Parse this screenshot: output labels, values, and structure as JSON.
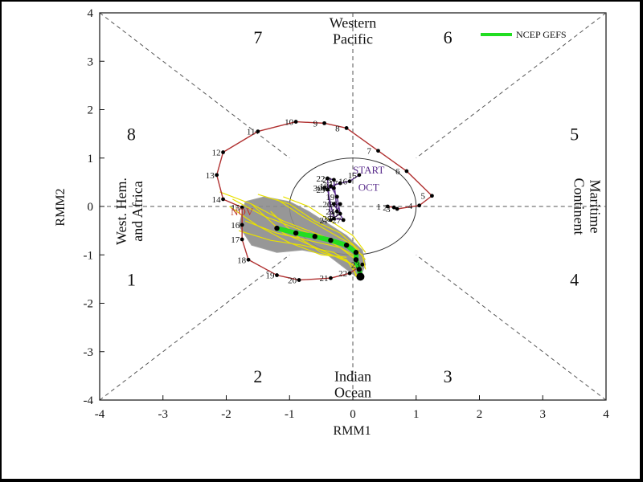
{
  "chart_data": {
    "type": "scatter",
    "xlabel": "RMM1",
    "ylabel": "RMM2",
    "xlim": [
      -4,
      4
    ],
    "ylim": [
      -4,
      4
    ],
    "x_ticks": [
      "-4",
      "-3",
      "-2",
      "-1",
      "0",
      "1",
      "2",
      "3",
      "4"
    ],
    "y_ticks": [
      "-4",
      "-3",
      "-2",
      "-1",
      "0",
      "1",
      "2",
      "3",
      "4"
    ],
    "legend": {
      "label": "NCEP GEFS",
      "color": "#22dd22",
      "position": "top-right"
    },
    "regions": {
      "top": [
        "Western",
        "Pacific"
      ],
      "bottom": [
        "Indian",
        "Ocean"
      ],
      "left": [
        "West. Hem.",
        "and Africa"
      ],
      "right": [
        "Maritime",
        "Continent"
      ]
    },
    "phases": [
      {
        "label": "1",
        "x": -3.5,
        "y": -1.5
      },
      {
        "label": "2",
        "x": -1.5,
        "y": -3.5
      },
      {
        "label": "3",
        "x": 1.5,
        "y": -3.5
      },
      {
        "label": "4",
        "x": 3.5,
        "y": -1.5
      },
      {
        "label": "5",
        "x": 3.5,
        "y": 1.5
      },
      {
        "label": "6",
        "x": 1.5,
        "y": 3.5
      },
      {
        "label": "7",
        "x": -1.5,
        "y": 3.5
      },
      {
        "label": "8",
        "x": -3.5,
        "y": 1.5
      }
    ],
    "month_labels": [
      {
        "text": "START",
        "x": 0.25,
        "y": 0.68,
        "color": "#5a2d8c"
      },
      {
        "text": "OCT",
        "x": 0.25,
        "y": 0.32,
        "color": "#5a2d8c"
      },
      {
        "text": "NOV",
        "x": -1.75,
        "y": -0.18,
        "color": "#c0392b"
      }
    ],
    "series": [
      {
        "name": "OCT",
        "color": "#5a2d8c",
        "points": [
          {
            "day": "15",
            "x": 0.1,
            "y": 0.65
          },
          {
            "day": "16",
            "x": -0.05,
            "y": 0.52
          },
          {
            "day": "17",
            "x": -0.2,
            "y": 0.48
          },
          {
            "day": "18",
            "x": -0.35,
            "y": 0.42
          },
          {
            "day": "19",
            "x": -0.25,
            "y": 0.2
          },
          {
            "day": "20",
            "x": -0.2,
            "y": -0.15
          },
          {
            "day": "21",
            "x": -0.35,
            "y": -0.28
          },
          {
            "day": "22",
            "x": -0.4,
            "y": 0.58
          },
          {
            "day": "23",
            "x": -0.3,
            "y": 0.55
          },
          {
            "day": "24",
            "x": -0.25,
            "y": -0.1
          },
          {
            "day": "25",
            "x": -0.2,
            "y": 0.05
          },
          {
            "day": "26",
            "x": -0.3,
            "y": 0.05
          },
          {
            "day": "27",
            "x": -0.15,
            "y": -0.28
          },
          {
            "day": "28",
            "x": -0.3,
            "y": -0.25
          },
          {
            "day": "29",
            "x": -0.4,
            "y": 0.35
          },
          {
            "day": "30",
            "x": -0.45,
            "y": 0.38
          },
          {
            "day": "31",
            "x": -0.3,
            "y": 0.38
          }
        ]
      },
      {
        "name": "NOV",
        "color": "#b03030",
        "points": [
          {
            "day": "1",
            "x": 0.55,
            "y": 0.0
          },
          {
            "day": "2",
            "x": 0.65,
            "y": -0.02
          },
          {
            "day": "3",
            "x": 0.7,
            "y": -0.05
          },
          {
            "day": "4",
            "x": 1.05,
            "y": 0.02
          },
          {
            "day": "5",
            "x": 1.25,
            "y": 0.22
          },
          {
            "day": "6",
            "x": 0.85,
            "y": 0.73
          },
          {
            "day": "7",
            "x": 0.4,
            "y": 1.15
          },
          {
            "day": "8",
            "x": -0.1,
            "y": 1.62
          },
          {
            "day": "9",
            "x": -0.45,
            "y": 1.72
          },
          {
            "day": "10",
            "x": -0.9,
            "y": 1.75
          },
          {
            "day": "11",
            "x": -1.5,
            "y": 1.55
          },
          {
            "day": "12",
            "x": -2.05,
            "y": 1.12
          },
          {
            "day": "13",
            "x": -2.15,
            "y": 0.65
          },
          {
            "day": "14",
            "x": -2.05,
            "y": 0.15
          },
          {
            "day": "15",
            "x": -1.75,
            "y": -0.02
          },
          {
            "day": "16",
            "x": -1.75,
            "y": -0.38
          },
          {
            "day": "17",
            "x": -1.75,
            "y": -0.68
          },
          {
            "day": "18",
            "x": -1.65,
            "y": -1.1
          },
          {
            "day": "19",
            "x": -1.2,
            "y": -1.42
          },
          {
            "day": "20",
            "x": -0.85,
            "y": -1.52
          },
          {
            "day": "21",
            "x": -0.35,
            "y": -1.48
          },
          {
            "day": "22",
            "x": -0.05,
            "y": -1.38
          },
          {
            "day": "23",
            "x": 0.15,
            "y": -1.2
          }
        ]
      },
      {
        "name": "NCEP GEFS",
        "color": "#22dd22",
        "points": [
          {
            "x": -1.2,
            "y": -0.45
          },
          {
            "x": -0.9,
            "y": -0.55
          },
          {
            "x": -0.6,
            "y": -0.62
          },
          {
            "x": -0.35,
            "y": -0.7
          },
          {
            "x": -0.1,
            "y": -0.8
          },
          {
            "x": 0.05,
            "y": -0.95
          },
          {
            "x": 0.05,
            "y": -1.1
          },
          {
            "x": 0.1,
            "y": -1.3
          },
          {
            "x": 0.12,
            "y": -1.45
          }
        ]
      }
    ],
    "grid": false
  }
}
